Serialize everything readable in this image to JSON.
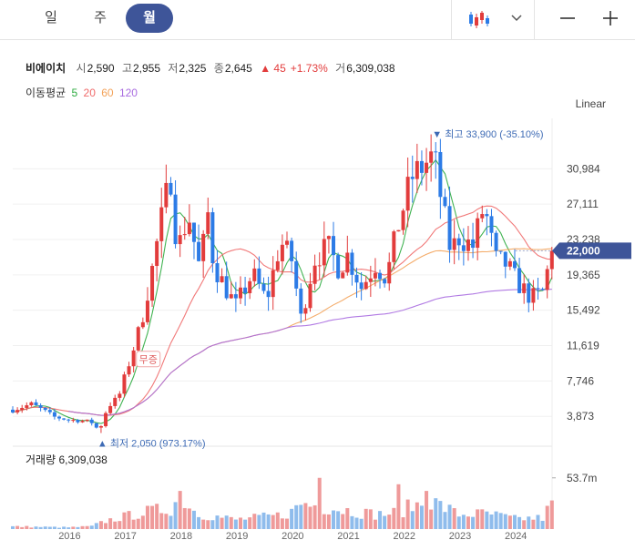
{
  "periods": [
    {
      "label": "일",
      "active": false
    },
    {
      "label": "주",
      "active": false
    },
    {
      "label": "월",
      "active": true
    }
  ],
  "toolbar": {
    "chart_type_icon": "candlestick-icon",
    "dropdown_icon": "chevron-down-icon",
    "minus_icon": "zoom-out-icon",
    "plus_icon": "zoom-in-icon"
  },
  "stock": {
    "name": "비에이치",
    "open_label": "시",
    "open": "2,590",
    "high_label": "고",
    "high": "2,955",
    "low_label": "저",
    "low": "2,325",
    "close_label": "종",
    "close": "2,645",
    "change": "▲ 45",
    "change_pct": "+1.73%",
    "volume_label": "거",
    "volume": "6,309,038"
  },
  "moving_average": {
    "label": "이동평균",
    "periods": [
      {
        "value": "5",
        "color": "#2cab3f"
      },
      {
        "value": "20",
        "color": "#f06a6a"
      },
      {
        "value": "60",
        "color": "#f3a35a"
      },
      {
        "value": "120",
        "color": "#a96ce0"
      }
    ]
  },
  "scale_mode": "Linear",
  "colors": {
    "up": "#e23c3c",
    "down": "#2c7be6",
    "accent": "#3e5599",
    "ma5": "#2cab3f",
    "ma20": "#f06a6a",
    "ma60": "#f3a35a",
    "ma120": "#a96ce0"
  },
  "chart_data": {
    "type": "candlestick",
    "price_axis": {
      "ticks": [
        30984,
        27111,
        23238,
        19365,
        15492,
        11619,
        7746,
        3873
      ],
      "labels": [
        "30,984",
        "27,111",
        "23,238",
        "19,365",
        "15,492",
        "11,619",
        "7,746",
        "3,873"
      ],
      "range": [
        1000,
        36500
      ]
    },
    "current_price_label": "22,000",
    "current_price": 22000,
    "max_annotation": "최고 33,900 (-35.10%)",
    "max_value": 33900,
    "min_annotation": "최저 2,050 (973.17%)",
    "min_value": 2050,
    "event_badge": "무증",
    "x_labels": [
      "2016",
      "2017",
      "2018",
      "2019",
      "2020",
      "2021",
      "2022",
      "2023",
      "2024"
    ],
    "x_start": 2015.0,
    "x_end": 2024.67,
    "volume_label": "거래량",
    "volume_value": "6,309,038",
    "volume_axis_label": "53.7m",
    "volume_axis_value": 53.7,
    "keypoints": [
      [
        2015.0,
        4600
      ],
      [
        2015.33,
        5200
      ],
      [
        2015.5,
        4700
      ],
      [
        2015.75,
        3800
      ],
      [
        2016.0,
        3500
      ],
      [
        2016.4,
        3300
      ],
      [
        2016.55,
        2300
      ],
      [
        2016.7,
        4900
      ],
      [
        2016.9,
        6000
      ],
      [
        2017.1,
        10000
      ],
      [
        2017.3,
        14000
      ],
      [
        2017.5,
        20000
      ],
      [
        2017.65,
        25000
      ],
      [
        2017.83,
        30300
      ],
      [
        2017.95,
        22000
      ],
      [
        2018.15,
        26000
      ],
      [
        2018.35,
        20000
      ],
      [
        2018.5,
        26000
      ],
      [
        2018.6,
        20500
      ],
      [
        2018.85,
        17500
      ],
      [
        2019.0,
        16000
      ],
      [
        2019.3,
        19500
      ],
      [
        2019.55,
        16500
      ],
      [
        2019.8,
        23000
      ],
      [
        2020.0,
        21000
      ],
      [
        2020.17,
        14500
      ],
      [
        2020.4,
        21000
      ],
      [
        2020.65,
        22500
      ],
      [
        2020.85,
        20000
      ],
      [
        2021.0,
        21500
      ],
      [
        2021.25,
        18000
      ],
      [
        2021.5,
        20500
      ],
      [
        2021.7,
        19000
      ],
      [
        2021.9,
        24500
      ],
      [
        2022.15,
        30000
      ],
      [
        2022.55,
        32500
      ],
      [
        2022.67,
        28000
      ],
      [
        2022.85,
        22000
      ],
      [
        2023.0,
        23500
      ],
      [
        2023.25,
        22500
      ],
      [
        2023.45,
        27000
      ],
      [
        2023.65,
        21000
      ],
      [
        2023.85,
        20500
      ],
      [
        2024.05,
        18500
      ],
      [
        2024.3,
        16800
      ],
      [
        2024.5,
        17500
      ],
      [
        2024.67,
        22000
      ]
    ],
    "volume_keypoints": [
      [
        2015.0,
        3
      ],
      [
        2016.0,
        2
      ],
      [
        2016.4,
        3
      ],
      [
        2016.7,
        10
      ],
      [
        2016.9,
        13
      ],
      [
        2017.4,
        20
      ],
      [
        2017.83,
        24
      ],
      [
        2018.0,
        40
      ],
      [
        2018.3,
        18
      ],
      [
        2019.0,
        11
      ],
      [
        2019.8,
        16
      ],
      [
        2020.0,
        20
      ],
      [
        2020.17,
        30
      ],
      [
        2020.5,
        27
      ],
      [
        2021.0,
        22
      ],
      [
        2021.5,
        17
      ],
      [
        2021.9,
        19
      ],
      [
        2022.15,
        27
      ],
      [
        2022.55,
        31
      ],
      [
        2023.0,
        17
      ],
      [
        2023.5,
        18
      ],
      [
        2024.0,
        12
      ],
      [
        2024.5,
        13
      ],
      [
        2024.67,
        30
      ]
    ],
    "volume_spikes": [
      [
        2020.5,
        53.7
      ],
      [
        2021.9,
        47
      ],
      [
        2018.0,
        40
      ],
      [
        2022.4,
        40
      ],
      [
        2024.67,
        30
      ]
    ],
    "last_volume": 6.3,
    "ma_periods": [
      5,
      20,
      60,
      120
    ]
  }
}
